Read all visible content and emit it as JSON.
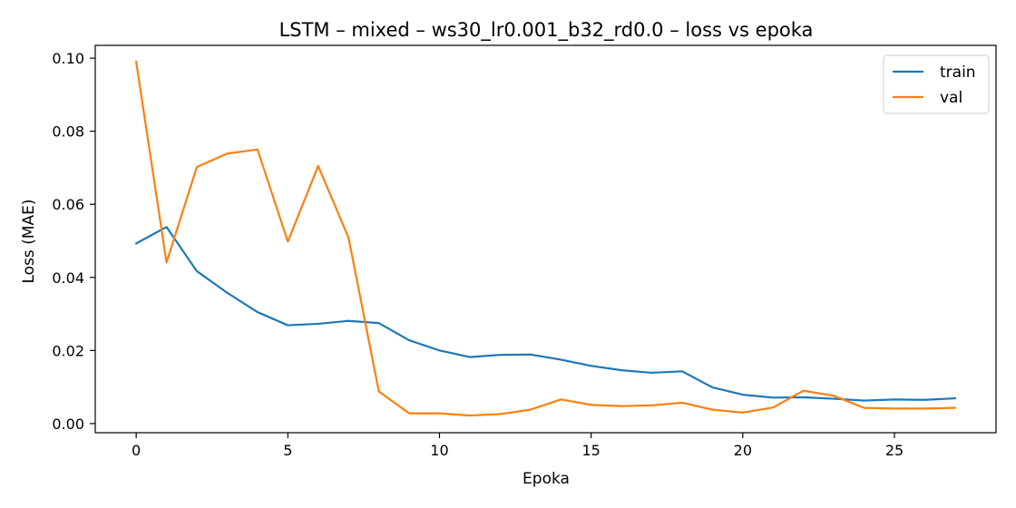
{
  "chart_data": {
    "type": "line",
    "title": "LSTM – mixed – ws30_lr0.001_b32_rd0.0 – loss vs epoka",
    "xlabel": "Epoka",
    "ylabel": "Loss (MAE)",
    "xlim": [
      -1.35,
      28.35
    ],
    "ylim": [
      -0.0025,
      0.1035
    ],
    "xticks": [
      0,
      5,
      10,
      15,
      20,
      25
    ],
    "yticks": [
      0.0,
      0.02,
      0.04,
      0.06,
      0.08,
      0.1
    ],
    "ytick_labels": [
      "0.00",
      "0.02",
      "0.04",
      "0.06",
      "0.08",
      "0.10"
    ],
    "grid": false,
    "legend_position": "top-right",
    "x": [
      0,
      1,
      2,
      3,
      4,
      5,
      6,
      7,
      8,
      9,
      10,
      11,
      12,
      13,
      14,
      15,
      16,
      17,
      18,
      19,
      20,
      21,
      22,
      23,
      24,
      25,
      26,
      27
    ],
    "series": [
      {
        "name": "train",
        "color": "#1f77b4",
        "values": [
          0.0493,
          0.0538,
          0.0417,
          0.0358,
          0.0305,
          0.0269,
          0.0273,
          0.0281,
          0.0275,
          0.0228,
          0.02,
          0.0182,
          0.0188,
          0.0189,
          0.0175,
          0.0158,
          0.0146,
          0.0139,
          0.0143,
          0.0099,
          0.0079,
          0.0071,
          0.0072,
          0.0068,
          0.0063,
          0.0066,
          0.0065,
          0.0069
        ]
      },
      {
        "name": "val",
        "color": "#ff7f0e",
        "values": [
          0.099,
          0.0441,
          0.0702,
          0.0739,
          0.075,
          0.0498,
          0.0705,
          0.0509,
          0.0088,
          0.0028,
          0.0028,
          0.0022,
          0.0026,
          0.0038,
          0.0066,
          0.0051,
          0.0048,
          0.005,
          0.0057,
          0.0038,
          0.003,
          0.0044,
          0.009,
          0.0076,
          0.0043,
          0.0041,
          0.0041,
          0.0043
        ]
      }
    ]
  }
}
